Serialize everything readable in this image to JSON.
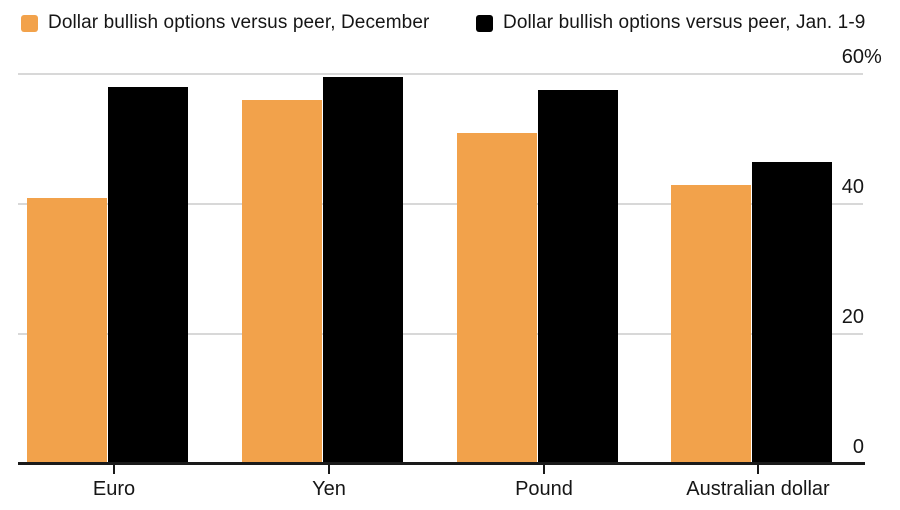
{
  "chart_data": {
    "type": "bar",
    "title": "",
    "categories": [
      "Euro",
      "Yen",
      "Pound",
      "Australian dollar"
    ],
    "series": [
      {
        "name": "Dollar bullish options versus peer, December",
        "color": "#F2A24B",
        "values": [
          41,
          56,
          51,
          43
        ]
      },
      {
        "name": "Dollar bullish options versus peer, Jan. 1-9",
        "color": "#000000",
        "values": [
          58,
          59.5,
          57.5,
          46.5
        ]
      }
    ],
    "unit": "%",
    "ylim": [
      0,
      60
    ],
    "yticks": [
      {
        "value": 60,
        "label": "60",
        "suffix": "%"
      },
      {
        "value": 40,
        "label": "40",
        "suffix": ""
      },
      {
        "value": 20,
        "label": "20",
        "suffix": ""
      },
      {
        "value": 0,
        "label": "0",
        "suffix": ""
      }
    ],
    "grid": "horizontal",
    "legend_position": "top",
    "background_color": "#FFFFFF",
    "gridline_color": "#D8D8D8",
    "axis_line_color": "#1A1A1A",
    "text_color": "#161616"
  }
}
